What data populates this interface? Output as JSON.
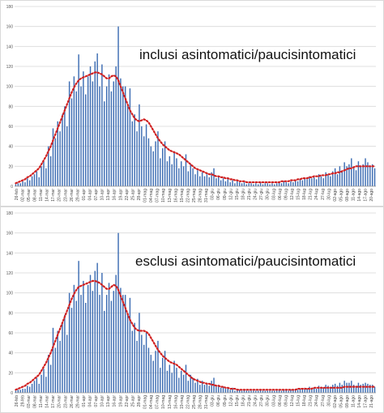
{
  "chart_data": [
    {
      "type": "bar",
      "title": "inclusi asintomatici/paucisintomatici",
      "xlabel": "",
      "ylabel": "",
      "ylim": [
        0,
        180
      ],
      "yticks": [
        0,
        20,
        40,
        60,
        80,
        100,
        120,
        140,
        160,
        180
      ],
      "grid": true,
      "legend": "none",
      "bar_color": "#3d6db3",
      "line_color": "#d02020",
      "x_tick_labels": [
        "26-feb",
        "02-mar",
        "05-mar",
        "08-mar",
        "11-mar",
        "14-mar",
        "17-mar",
        "20-mar",
        "23-mar",
        "26-mar",
        "29-mar",
        "01-apr",
        "04-apr",
        "07-apr",
        "10-apr",
        "13-apr",
        "16-apr",
        "19-apr",
        "22-apr",
        "25-apr",
        "28-apr",
        "01-mag",
        "04-mag",
        "07-mag",
        "10-mag",
        "13-mag",
        "16-mag",
        "19-mag",
        "22-mag",
        "25-mag",
        "28-mag",
        "31-mag",
        "03-giu",
        "06-giu",
        "09-giu",
        "12-giu",
        "15-giu",
        "18-giu",
        "21-giu",
        "24-giu",
        "27-giu",
        "30-giu",
        "03-lug",
        "06-lug",
        "09-lug",
        "12-lug",
        "15-lug",
        "18-lug",
        "21-lug",
        "24-lug",
        "27-lug",
        "30-lug",
        "02-ago",
        "05-ago",
        "08-ago",
        "11-ago",
        "14-ago",
        "17-ago",
        "20-ago"
      ],
      "series": [
        {
          "kind": "bar",
          "values": [
            2,
            3,
            3,
            5,
            4,
            8,
            6,
            10,
            12,
            15,
            9,
            20,
            25,
            18,
            40,
            30,
            58,
            48,
            65,
            55,
            72,
            80,
            60,
            105,
            88,
            110,
            95,
            132,
            100,
            115,
            92,
            110,
            120,
            105,
            125,
            133,
            100,
            122,
            85,
            100,
            112,
            95,
            105,
            120,
            160,
            108,
            100,
            100,
            80,
            98,
            65,
            72,
            55,
            82,
            60,
            50,
            62,
            48,
            40,
            35,
            45,
            55,
            28,
            38,
            45,
            25,
            30,
            22,
            35,
            28,
            18,
            25,
            20,
            32,
            15,
            22,
            18,
            12,
            16,
            10,
            14,
            10,
            12,
            9,
            14,
            18,
            8,
            10,
            6,
            8,
            5,
            7,
            4,
            6,
            3,
            5,
            4,
            3,
            4,
            2,
            3,
            3,
            2,
            3,
            2,
            4,
            2,
            3,
            3,
            2,
            3,
            2,
            3,
            4,
            3,
            5,
            4,
            3,
            5,
            4,
            6,
            5,
            7,
            6,
            8,
            7,
            10,
            8,
            9,
            7,
            12,
            10,
            8,
            14,
            12,
            10,
            15,
            18,
            12,
            20,
            16,
            24,
            20,
            22,
            28,
            18,
            16,
            25,
            20,
            22,
            28,
            24,
            20,
            22,
            18
          ]
        },
        {
          "kind": "line",
          "style": "dotted",
          "values": [
            3,
            4,
            5,
            6,
            7,
            9,
            10,
            12,
            14,
            16,
            18,
            22,
            26,
            30,
            35,
            40,
            46,
            52,
            58,
            64,
            70,
            76,
            82,
            88,
            94,
            99,
            103,
            106,
            108,
            109,
            110,
            111,
            112,
            113,
            114,
            114,
            113,
            112,
            110,
            108,
            108,
            110,
            111,
            110,
            106,
            100,
            94,
            88,
            82,
            76,
            72,
            68,
            66,
            65,
            66,
            67,
            66,
            64,
            60,
            56,
            52,
            48,
            45,
            42,
            40,
            38,
            36,
            35,
            34,
            33,
            32,
            30,
            28,
            26,
            24,
            22,
            20,
            18,
            17,
            16,
            15,
            14,
            13,
            12,
            12,
            11,
            10,
            10,
            9,
            9,
            8,
            8,
            7,
            7,
            6,
            6,
            5,
            5,
            5,
            4,
            4,
            4,
            4,
            4,
            4,
            4,
            4,
            4,
            4,
            4,
            4,
            4,
            4,
            4,
            5,
            5,
            5,
            5,
            6,
            6,
            6,
            7,
            7,
            8,
            8,
            8,
            9,
            9,
            10,
            10,
            10,
            11,
            11,
            11,
            12,
            12,
            13,
            13,
            14,
            14,
            15,
            16,
            17,
            18,
            18,
            19,
            20,
            20,
            20,
            20,
            20,
            20,
            20,
            20,
            20
          ]
        }
      ]
    },
    {
      "type": "bar",
      "title": "esclusi asintomatici/paucisintomatici",
      "xlabel": "",
      "ylabel": "",
      "ylim": [
        0,
        180
      ],
      "yticks": [
        0,
        20,
        40,
        60,
        80,
        100,
        120,
        140,
        160,
        180
      ],
      "grid": true,
      "legend": "none",
      "bar_color": "#3d6db3",
      "line_color": "#d02020",
      "x_tick_labels": [
        "26-feb",
        "29-feb",
        "03-mar",
        "08-mar",
        "11-mar",
        "14-mar",
        "17-mar",
        "20-mar",
        "23-mar",
        "26-mar",
        "29-mar",
        "01-apr",
        "04-apr",
        "07-apr",
        "10-apr",
        "13-apr",
        "16-apr",
        "19-apr",
        "22-apr",
        "25-apr",
        "28-apr",
        "01-mag",
        "04-mag",
        "07-mag",
        "10-mag",
        "13-mag",
        "16-mag",
        "19-mag",
        "22-mag",
        "25-mag",
        "28-mag",
        "31-mag",
        "03-giu",
        "06-giu",
        "09-giu",
        "12-giu",
        "15-giu",
        "18-giu",
        "21-giu",
        "24-giu",
        "27-giu",
        "30-giu",
        "03-lug",
        "06-lug",
        "09-lug",
        "12-lug",
        "15-lug",
        "18-lug",
        "21-lug",
        "24-lug",
        "27-lug",
        "30-lug",
        "02-ago",
        "05-ago",
        "08-ago",
        "11-ago",
        "14-ago",
        "17-ago",
        "21-ago"
      ],
      "series": [
        {
          "kind": "bar",
          "values": [
            2,
            3,
            3,
            4,
            4,
            7,
            6,
            9,
            12,
            15,
            9,
            18,
            24,
            16,
            38,
            28,
            65,
            45,
            62,
            52,
            70,
            78,
            58,
            100,
            85,
            108,
            92,
            132,
            98,
            112,
            90,
            108,
            118,
            102,
            122,
            130,
            98,
            120,
            82,
            98,
            110,
            92,
            102,
            118,
            160,
            105,
            98,
            98,
            78,
            95,
            62,
            70,
            52,
            80,
            58,
            48,
            60,
            45,
            38,
            32,
            42,
            52,
            25,
            35,
            42,
            22,
            28,
            20,
            32,
            25,
            15,
            22,
            18,
            28,
            12,
            18,
            15,
            10,
            14,
            8,
            12,
            8,
            10,
            7,
            12,
            15,
            6,
            8,
            5,
            6,
            4,
            5,
            3,
            5,
            2,
            4,
            3,
            2,
            3,
            2,
            2,
            2,
            2,
            2,
            2,
            3,
            2,
            2,
            2,
            2,
            2,
            2,
            2,
            3,
            2,
            3,
            3,
            2,
            3,
            3,
            4,
            3,
            4,
            4,
            5,
            4,
            6,
            5,
            5,
            4,
            7,
            6,
            5,
            8,
            7,
            6,
            8,
            9,
            7,
            10,
            8,
            12,
            10,
            10,
            12,
            8,
            7,
            10,
            8,
            9,
            10,
            9,
            8,
            8,
            6
          ]
        },
        {
          "kind": "line",
          "style": "dotted",
          "values": [
            3,
            4,
            5,
            6,
            7,
            9,
            10,
            12,
            14,
            16,
            18,
            22,
            26,
            30,
            35,
            40,
            46,
            52,
            58,
            64,
            70,
            76,
            82,
            88,
            94,
            99,
            103,
            106,
            107,
            108,
            109,
            110,
            111,
            112,
            112,
            111,
            110,
            108,
            106,
            104,
            104,
            106,
            108,
            107,
            103,
            97,
            91,
            85,
            79,
            73,
            69,
            65,
            63,
            62,
            62,
            62,
            61,
            59,
            55,
            51,
            47,
            43,
            40,
            37,
            35,
            33,
            31,
            30,
            29,
            28,
            26,
            24,
            22,
            20,
            18,
            16,
            14,
            13,
            12,
            11,
            10,
            10,
            9,
            9,
            8,
            8,
            7,
            7,
            6,
            6,
            5,
            5,
            4,
            4,
            4,
            3,
            3,
            3,
            3,
            3,
            3,
            3,
            3,
            3,
            3,
            3,
            3,
            3,
            3,
            3,
            3,
            3,
            3,
            3,
            3,
            3,
            3,
            3,
            3,
            3,
            3,
            4,
            4,
            4,
            4,
            4,
            4,
            4,
            5,
            5,
            5,
            5,
            5,
            5,
            5,
            5,
            5,
            5,
            5,
            5,
            5,
            6,
            6,
            6,
            6,
            6,
            6,
            6,
            6,
            6,
            6,
            6,
            6,
            6,
            6
          ]
        }
      ]
    }
  ]
}
